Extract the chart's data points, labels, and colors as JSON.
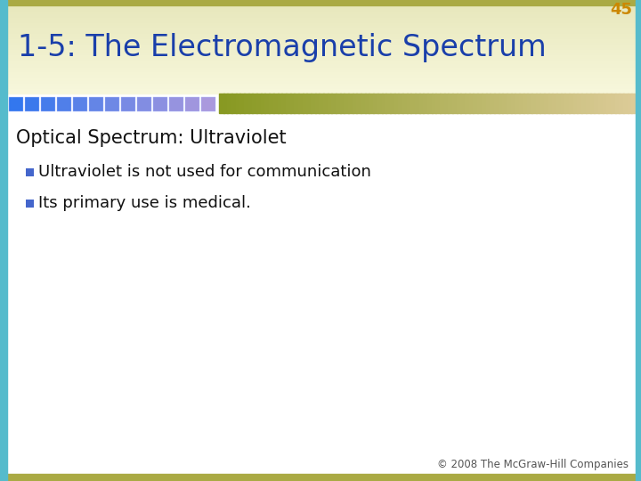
{
  "slide_number": "45",
  "slide_number_color": "#CC8800",
  "title": "1-5: The Electromagnetic Spectrum",
  "title_color": "#1a3faa",
  "background_color": "#ffffff",
  "border_left_color": "#55bbcc",
  "border_bottom_color": "#aaaa44",
  "header_bg_color": "#eeeebb",
  "blue_squares_start": "#3377ee",
  "blue_squares_end": "#9999dd",
  "olive_grad_start": "#aaaa44",
  "olive_grad_end": "#ddddaa",
  "section_heading": "Optical Spectrum: Ultraviolet",
  "section_heading_color": "#111111",
  "bullets": [
    "Ultraviolet is not used for communication",
    "Its primary use is medical."
  ],
  "bullet_text_color": "#111111",
  "bullet_sq_color": "#4466cc",
  "footer_text": "© 2008 The McGraw-Hill Companies",
  "footer_color": "#555555",
  "figwidth": 7.2,
  "figheight": 5.4,
  "dpi": 100
}
